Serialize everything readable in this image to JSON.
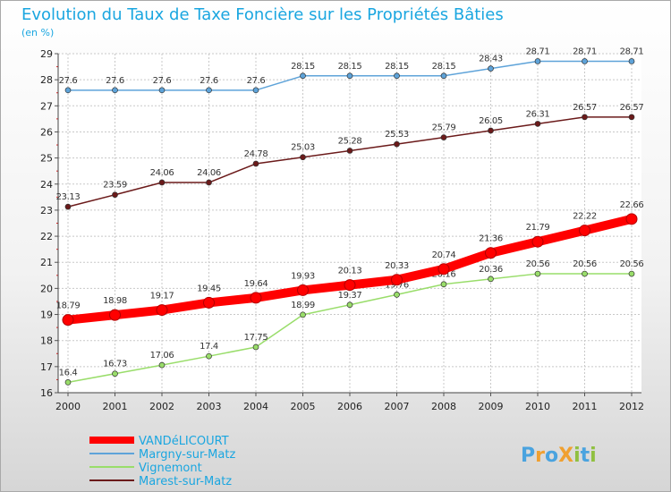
{
  "chart_data": {
    "type": "line",
    "title": "Evolution du Taux de Taxe Foncière sur les Propriétés Bâties",
    "subtitle": "(en %)",
    "xlabel": "",
    "ylabel": "",
    "x": [
      "2000",
      "2001",
      "2002",
      "2003",
      "2004",
      "2005",
      "2006",
      "2007",
      "2008",
      "2009",
      "2010",
      "2011",
      "2012"
    ],
    "y_ticks": [
      "16",
      "17",
      "18",
      "19",
      "20",
      "21",
      "22",
      "23",
      "24",
      "25",
      "26",
      "27",
      "28",
      "29"
    ],
    "ylim": [
      16,
      29
    ],
    "grid": true,
    "legend_position": "bottom-left",
    "series": [
      {
        "name": "VANDéLICOURT",
        "color": "#ff0000",
        "values": [
          18.79,
          18.98,
          19.17,
          19.45,
          19.64,
          19.93,
          20.13,
          20.33,
          20.74,
          21.36,
          21.79,
          22.22,
          22.66
        ],
        "labels": [
          "18.79",
          "18.98",
          "19.17",
          "19.45",
          "19.64",
          "19.93",
          "20.13",
          "20.33",
          "20.74",
          "21.36",
          "21.79",
          "22.22",
          "22.66"
        ]
      },
      {
        "name": "Margny-sur-Matz",
        "color": "#5ea3d9",
        "values": [
          27.6,
          27.6,
          27.6,
          27.6,
          27.6,
          28.15,
          28.15,
          28.15,
          28.15,
          28.43,
          28.71,
          28.71,
          28.71
        ],
        "labels": [
          "27.6",
          "27.6",
          "27.6",
          "27.6",
          "27.6",
          "28.15",
          "28.15",
          "28.15",
          "28.15",
          "28.43",
          "28.71",
          "28.71",
          "28.71"
        ]
      },
      {
        "name": "Vignemont",
        "color": "#99dd6a",
        "values": [
          16.4,
          16.73,
          17.06,
          17.4,
          17.75,
          18.99,
          19.37,
          19.76,
          20.16,
          20.36,
          20.56,
          20.56,
          20.56
        ],
        "labels": [
          "16.4",
          "16.73",
          "17.06",
          "17.4",
          "17.75",
          "18.99",
          "19.37",
          "19.76",
          "20.16",
          "20.36",
          "20.56",
          "20.56",
          "20.56"
        ]
      },
      {
        "name": "Marest-sur-Matz",
        "color": "#6b1a1a",
        "values": [
          23.13,
          23.59,
          24.06,
          24.06,
          24.78,
          25.03,
          25.28,
          25.53,
          25.79,
          26.05,
          26.31,
          26.57,
          26.57
        ],
        "labels": [
          "23.13",
          "23.59",
          "24.06",
          "24.06",
          "24.78",
          "25.03",
          "25.28",
          "25.53",
          "25.79",
          "26.05",
          "26.31",
          "26.57",
          "26.57"
        ]
      }
    ]
  },
  "brand": {
    "text": "ProXiti",
    "letters": [
      "P",
      "r",
      "o",
      "X",
      "i",
      "t",
      "i"
    ],
    "colors": [
      "#4aa3df",
      "#f0a030",
      "#4aa3df",
      "#f0a030",
      "#90c040",
      "#4aa3df",
      "#90c040"
    ]
  }
}
